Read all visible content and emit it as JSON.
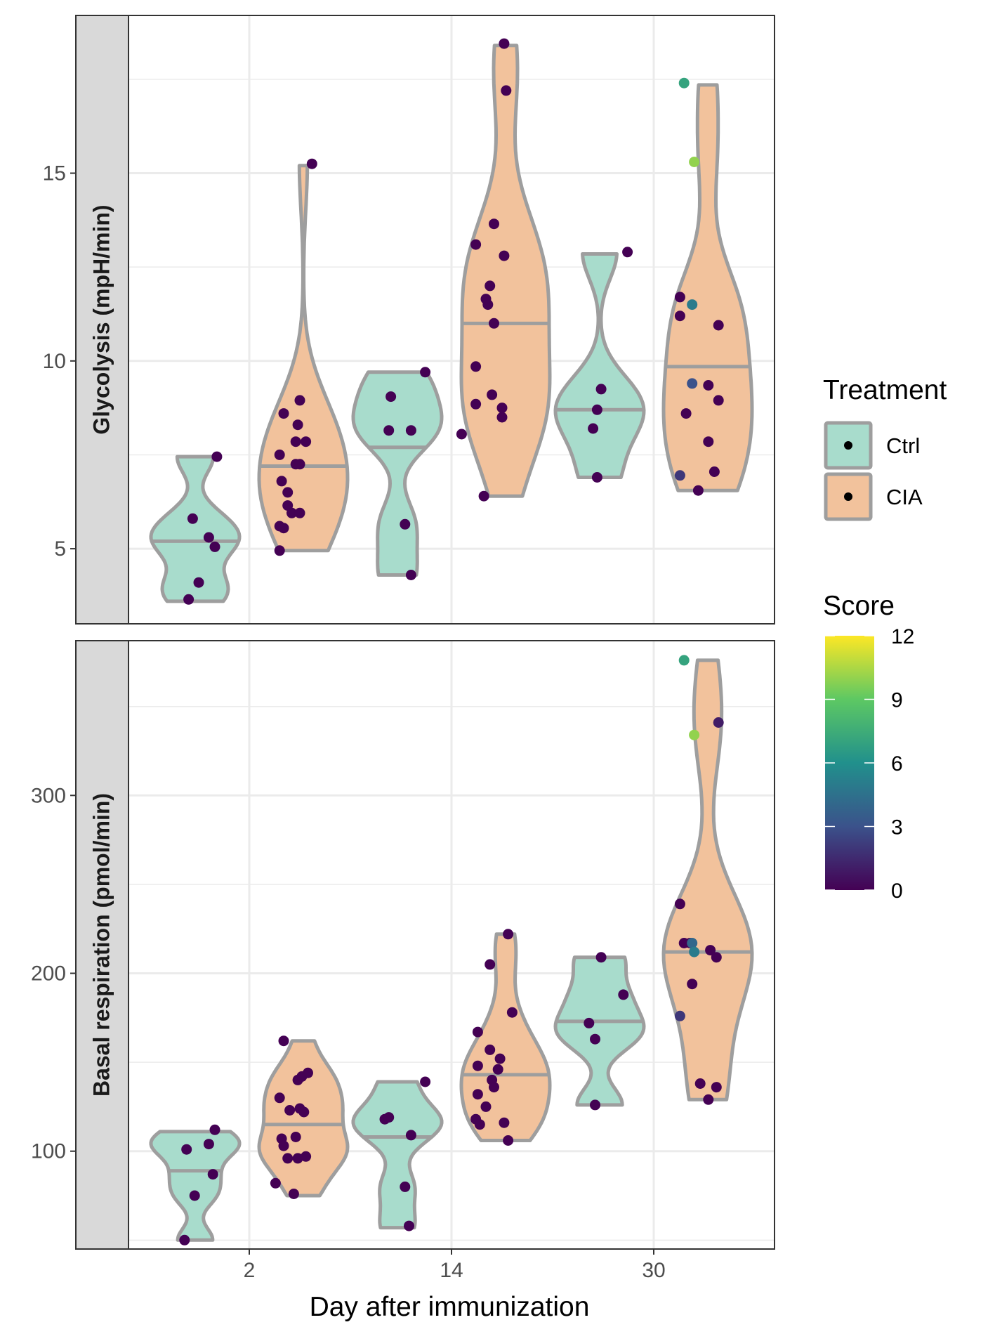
{
  "chart_data": {
    "type": "violin",
    "xlabel": "Day after immunization",
    "categories": [
      "2",
      "14",
      "30"
    ],
    "treatments": [
      {
        "name": "Ctrl",
        "fill": "#A8DCCC"
      },
      {
        "name": "CIA",
        "fill": "#F2C29C"
      }
    ],
    "legend": {
      "treatment_title": "Treatment",
      "score_title": "Score",
      "score_ticks": [
        "12",
        "9",
        "6",
        "3",
        "0"
      ],
      "score_range": [
        0,
        12
      ],
      "score_colors": [
        "#440154",
        "#3B528B",
        "#21908C",
        "#5DC863",
        "#FDE725"
      ],
      "placement": "right"
    },
    "panels": [
      {
        "strip_label": "Glycolysis (mpH/min)",
        "ylim": [
          3.0,
          19.2
        ],
        "yticks": [
          "5",
          "10",
          "15"
        ],
        "ytick_values": [
          5,
          10,
          15
        ],
        "groups": [
          {
            "day": "2",
            "treatment": "Ctrl",
            "min": 3.6,
            "max": 7.45,
            "median": 5.2,
            "points": [
              [
                -0.3,
                3.65,
                0
              ],
              [
                -0.25,
                4.1,
                0
              ],
              [
                -0.28,
                5.8,
                0
              ],
              [
                -0.2,
                5.3,
                0
              ],
              [
                -0.17,
                5.05,
                0
              ],
              [
                -0.16,
                7.45,
                0
              ]
            ]
          },
          {
            "day": "2",
            "treatment": "CIA",
            "min": 4.95,
            "max": 15.2,
            "median": 7.2,
            "points": [
              [
                0.15,
                4.95,
                0
              ],
              [
                0.15,
                5.6,
                0
              ],
              [
                0.17,
                5.55,
                0
              ],
              [
                0.15,
                7.5,
                0
              ],
              [
                0.16,
                6.8,
                0
              ],
              [
                0.19,
                6.5,
                0
              ],
              [
                0.19,
                6.15,
                0
              ],
              [
                0.21,
                5.95,
                0
              ],
              [
                0.25,
                5.95,
                0
              ],
              [
                0.23,
                7.25,
                0
              ],
              [
                0.25,
                7.25,
                0
              ],
              [
                0.23,
                7.85,
                0
              ],
              [
                0.28,
                7.85,
                0
              ],
              [
                0.24,
                8.3,
                0
              ],
              [
                0.17,
                8.6,
                0
              ],
              [
                0.25,
                8.95,
                0
              ],
              [
                0.31,
                15.25,
                0
              ]
            ]
          },
          {
            "day": "14",
            "treatment": "Ctrl",
            "min": 4.3,
            "max": 9.7,
            "median": 7.7,
            "points": [
              [
                -0.31,
                8.15,
                0
              ],
              [
                -0.2,
                8.15,
                0
              ],
              [
                -0.3,
                9.05,
                0
              ],
              [
                -0.13,
                9.7,
                0
              ],
              [
                -0.23,
                5.65,
                0
              ],
              [
                -0.2,
                4.3,
                0
              ]
            ]
          },
          {
            "day": "14",
            "treatment": "CIA",
            "min": 6.4,
            "max": 18.4,
            "median": 11.0,
            "points": [
              [
                0.05,
                8.05,
                0
              ],
              [
                0.16,
                6.4,
                0
              ],
              [
                0.12,
                8.85,
                0
              ],
              [
                0.12,
                9.85,
                0
              ],
              [
                0.2,
                9.1,
                0
              ],
              [
                0.25,
                8.75,
                0
              ],
              [
                0.25,
                8.5,
                0
              ],
              [
                0.21,
                11.0,
                0
              ],
              [
                0.18,
                11.5,
                0
              ],
              [
                0.17,
                11.65,
                0
              ],
              [
                0.19,
                12.0,
                0
              ],
              [
                0.12,
                13.1,
                0
              ],
              [
                0.21,
                13.65,
                0
              ],
              [
                0.26,
                12.8,
                0
              ],
              [
                0.26,
                18.45,
                0
              ],
              [
                0.27,
                17.2,
                0
              ]
            ]
          },
          {
            "day": "30",
            "treatment": "Ctrl",
            "min": 6.9,
            "max": 12.85,
            "median": 8.7,
            "points": [
              [
                -0.3,
                8.2,
                0
              ],
              [
                -0.28,
                8.7,
                0
              ],
              [
                -0.26,
                9.25,
                0
              ],
              [
                -0.28,
                6.9,
                0
              ],
              [
                -0.13,
                12.9,
                0
              ]
            ]
          },
          {
            "day": "30",
            "treatment": "CIA",
            "min": 6.55,
            "max": 17.35,
            "median": 9.85,
            "points": [
              [
                0.13,
                6.95,
                2
              ],
              [
                0.22,
                6.55,
                0
              ],
              [
                0.3,
                7.05,
                0
              ],
              [
                0.27,
                7.85,
                0
              ],
              [
                0.16,
                8.6,
                0
              ],
              [
                0.19,
                9.4,
                3
              ],
              [
                0.27,
                9.35,
                0
              ],
              [
                0.32,
                8.95,
                0
              ],
              [
                0.13,
                11.2,
                0
              ],
              [
                0.13,
                11.7,
                0
              ],
              [
                0.19,
                11.5,
                5
              ],
              [
                0.32,
                10.95,
                0
              ],
              [
                0.2,
                15.3,
                10
              ],
              [
                0.15,
                17.4,
                7
              ]
            ]
          }
        ]
      },
      {
        "strip_label": "Basal respiration (pmol/min)",
        "ylim": [
          45,
          387
        ],
        "yticks": [
          "100",
          "200",
          "300"
        ],
        "ytick_values": [
          100,
          200,
          300
        ],
        "groups": [
          {
            "day": "2",
            "treatment": "Ctrl",
            "min": 50,
            "max": 111,
            "median": 89,
            "points": [
              [
                -0.32,
                50,
                0
              ],
              [
                -0.27,
                75,
                0
              ],
              [
                -0.31,
                101,
                0
              ],
              [
                -0.2,
                104,
                0
              ],
              [
                -0.18,
                87,
                0
              ],
              [
                -0.17,
                112,
                0
              ]
            ]
          },
          {
            "day": "2",
            "treatment": "CIA",
            "min": 75,
            "max": 162,
            "median": 115,
            "points": [
              [
                0.13,
                82,
                0
              ],
              [
                0.15,
                130,
                0
              ],
              [
                0.16,
                107,
                0
              ],
              [
                0.17,
                103,
                0
              ],
              [
                0.19,
                96,
                0
              ],
              [
                0.2,
                123,
                0
              ],
              [
                0.22,
                76,
                0
              ],
              [
                0.23,
                108,
                0
              ],
              [
                0.24,
                96,
                0
              ],
              [
                0.25,
                124,
                0
              ],
              [
                0.27,
                122,
                0
              ],
              [
                0.28,
                97,
                0
              ],
              [
                0.24,
                140,
                0
              ],
              [
                0.26,
                142,
                0
              ],
              [
                0.29,
                144,
                0
              ],
              [
                0.17,
                162,
                0
              ]
            ]
          },
          {
            "day": "14",
            "treatment": "Ctrl",
            "min": 57,
            "max": 139,
            "median": 108,
            "points": [
              [
                -0.33,
                118,
                0
              ],
              [
                -0.31,
                119,
                0
              ],
              [
                -0.2,
                109,
                0
              ],
              [
                -0.23,
                80,
                0
              ],
              [
                -0.21,
                58,
                0
              ],
              [
                -0.13,
                139,
                0
              ]
            ]
          },
          {
            "day": "14",
            "treatment": "CIA",
            "min": 106,
            "max": 222,
            "median": 143,
            "points": [
              [
                0.12,
                118,
                0
              ],
              [
                0.13,
                132,
                0
              ],
              [
                0.13,
                148,
                0
              ],
              [
                0.14,
                115,
                0
              ],
              [
                0.17,
                125,
                0
              ],
              [
                0.2,
                140,
                0
              ],
              [
                0.21,
                136,
                0
              ],
              [
                0.23,
                146,
                0
              ],
              [
                0.24,
                152,
                0
              ],
              [
                0.26,
                116,
                0
              ],
              [
                0.28,
                106,
                0
              ],
              [
                0.19,
                157,
                0
              ],
              [
                0.13,
                167,
                0
              ],
              [
                0.19,
                205,
                0
              ],
              [
                0.3,
                178,
                0
              ],
              [
                0.28,
                222,
                0
              ]
            ]
          },
          {
            "day": "30",
            "treatment": "Ctrl",
            "min": 126,
            "max": 209,
            "median": 173,
            "points": [
              [
                -0.32,
                172,
                0
              ],
              [
                -0.29,
                163,
                0
              ],
              [
                -0.29,
                126,
                0
              ],
              [
                -0.15,
                188,
                0
              ],
              [
                -0.26,
                209,
                0
              ]
            ]
          },
          {
            "day": "30",
            "treatment": "CIA",
            "min": 129,
            "max": 376,
            "median": 212,
            "points": [
              [
                0.13,
                176,
                2
              ],
              [
                0.13,
                239,
                0
              ],
              [
                0.15,
                217,
                0
              ],
              [
                0.18,
                217,
                0
              ],
              [
                0.19,
                217,
                4
              ],
              [
                0.2,
                212,
                5
              ],
              [
                0.19,
                194,
                0
              ],
              [
                0.28,
                213,
                0
              ],
              [
                0.31,
                209,
                0
              ],
              [
                0.23,
                138,
                0
              ],
              [
                0.27,
                129,
                0
              ],
              [
                0.31,
                136,
                0
              ],
              [
                0.15,
                376,
                7
              ],
              [
                0.2,
                334,
                10
              ],
              [
                0.32,
                341,
                1
              ]
            ]
          }
        ]
      }
    ]
  }
}
